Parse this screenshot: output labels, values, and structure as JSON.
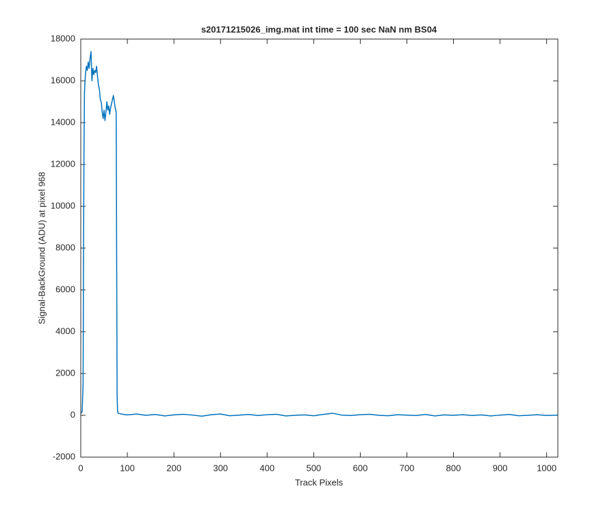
{
  "chart_data": {
    "type": "line",
    "title": "s20171215026_img.mat int time = 100 sec  NaN nm BS04",
    "x_label": "Track Pixels",
    "y_label": "Signal-BackGround (ADU) at pixel 968",
    "color": "#0072bd",
    "grid": false,
    "x": [
      1,
      3,
      5,
      6,
      7,
      8,
      10,
      12,
      14,
      16,
      18,
      20,
      22,
      24,
      26,
      28,
      30,
      32,
      34,
      36,
      38,
      40,
      42,
      44,
      46,
      48,
      50,
      52,
      54,
      56,
      58,
      60,
      62,
      64,
      66,
      68,
      70,
      72,
      74,
      76,
      77,
      78,
      79,
      80,
      90,
      100,
      120,
      140,
      160,
      180,
      200,
      220,
      240,
      260,
      280,
      300,
      320,
      340,
      360,
      380,
      400,
      420,
      440,
      460,
      480,
      500,
      520,
      540,
      560,
      580,
      600,
      620,
      640,
      660,
      680,
      700,
      720,
      740,
      760,
      780,
      800,
      820,
      840,
      860,
      880,
      900,
      920,
      940,
      960,
      980,
      1000,
      1024
    ],
    "values": [
      100,
      200,
      1500,
      8000,
      13000,
      15500,
      16300,
      16700,
      16500,
      16900,
      16600,
      17100,
      17400,
      16000,
      16600,
      16300,
      16500,
      16400,
      16700,
      16200,
      15800,
      15600,
      15100,
      15000,
      14500,
      14200,
      14600,
      14100,
      14500,
      15000,
      14600,
      14800,
      14400,
      14700,
      14900,
      15100,
      15300,
      15000,
      14700,
      14500,
      8000,
      1000,
      200,
      100,
      50,
      20,
      60,
      0,
      40,
      -30,
      20,
      50,
      10,
      -40,
      30,
      60,
      -20,
      10,
      40,
      -10,
      30,
      50,
      -30,
      0,
      20,
      -20,
      40,
      100,
      10,
      -10,
      30,
      50,
      0,
      -20,
      30,
      10,
      -10,
      40,
      -30,
      20,
      0,
      30,
      -10,
      20,
      -30,
      10,
      40,
      -20,
      0,
      30,
      -10,
      10
    ],
    "xlim": [
      0,
      1024
    ],
    "ylim": [
      -2000,
      18000
    ],
    "xticks": [
      0,
      100,
      200,
      300,
      400,
      500,
      600,
      700,
      800,
      900,
      1000
    ],
    "yticks": [
      -2000,
      0,
      2000,
      4000,
      6000,
      8000,
      10000,
      12000,
      14000,
      16000,
      18000
    ]
  }
}
